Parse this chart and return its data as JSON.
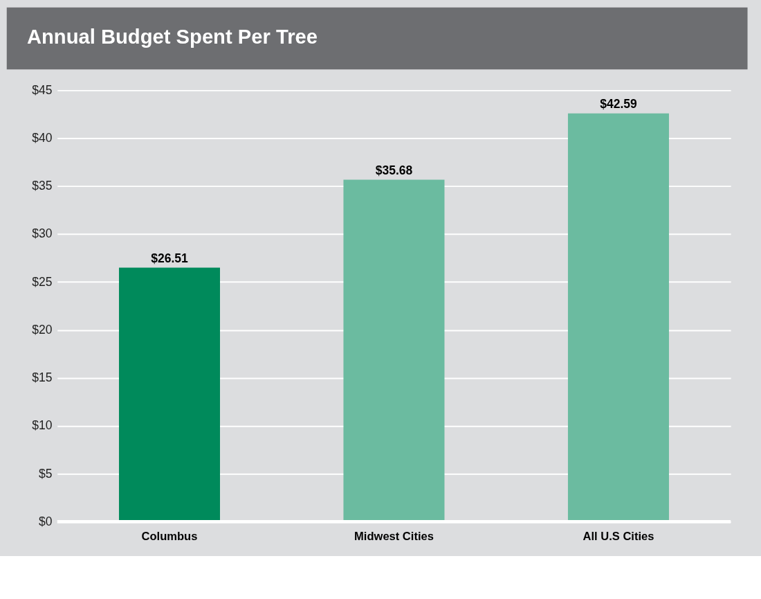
{
  "chart_data": {
    "type": "bar",
    "title": "Annual Budget Spent Per Tree",
    "categories": [
      "Columbus",
      "Midwest Cities",
      "All U.S Cities"
    ],
    "values": [
      26.51,
      35.68,
      42.59
    ],
    "colors": [
      "#008a5b",
      "#6bbba0",
      "#6bbba0"
    ],
    "value_labels": [
      "$26.51",
      "$35.68",
      "$42.59"
    ],
    "ylim": [
      0,
      45
    ],
    "yticks": [
      {
        "value": 0,
        "label": "$0"
      },
      {
        "value": 5,
        "label": "$5"
      },
      {
        "value": 10,
        "label": "$10"
      },
      {
        "value": 15,
        "label": "$15"
      },
      {
        "value": 20,
        "label": "$20"
      },
      {
        "value": 25,
        "label": "$25"
      },
      {
        "value": 30,
        "label": "$30"
      },
      {
        "value": 35,
        "label": "$35"
      },
      {
        "value": 40,
        "label": "$40"
      },
      {
        "value": 45,
        "label": "$45"
      }
    ],
    "grid": "y"
  }
}
